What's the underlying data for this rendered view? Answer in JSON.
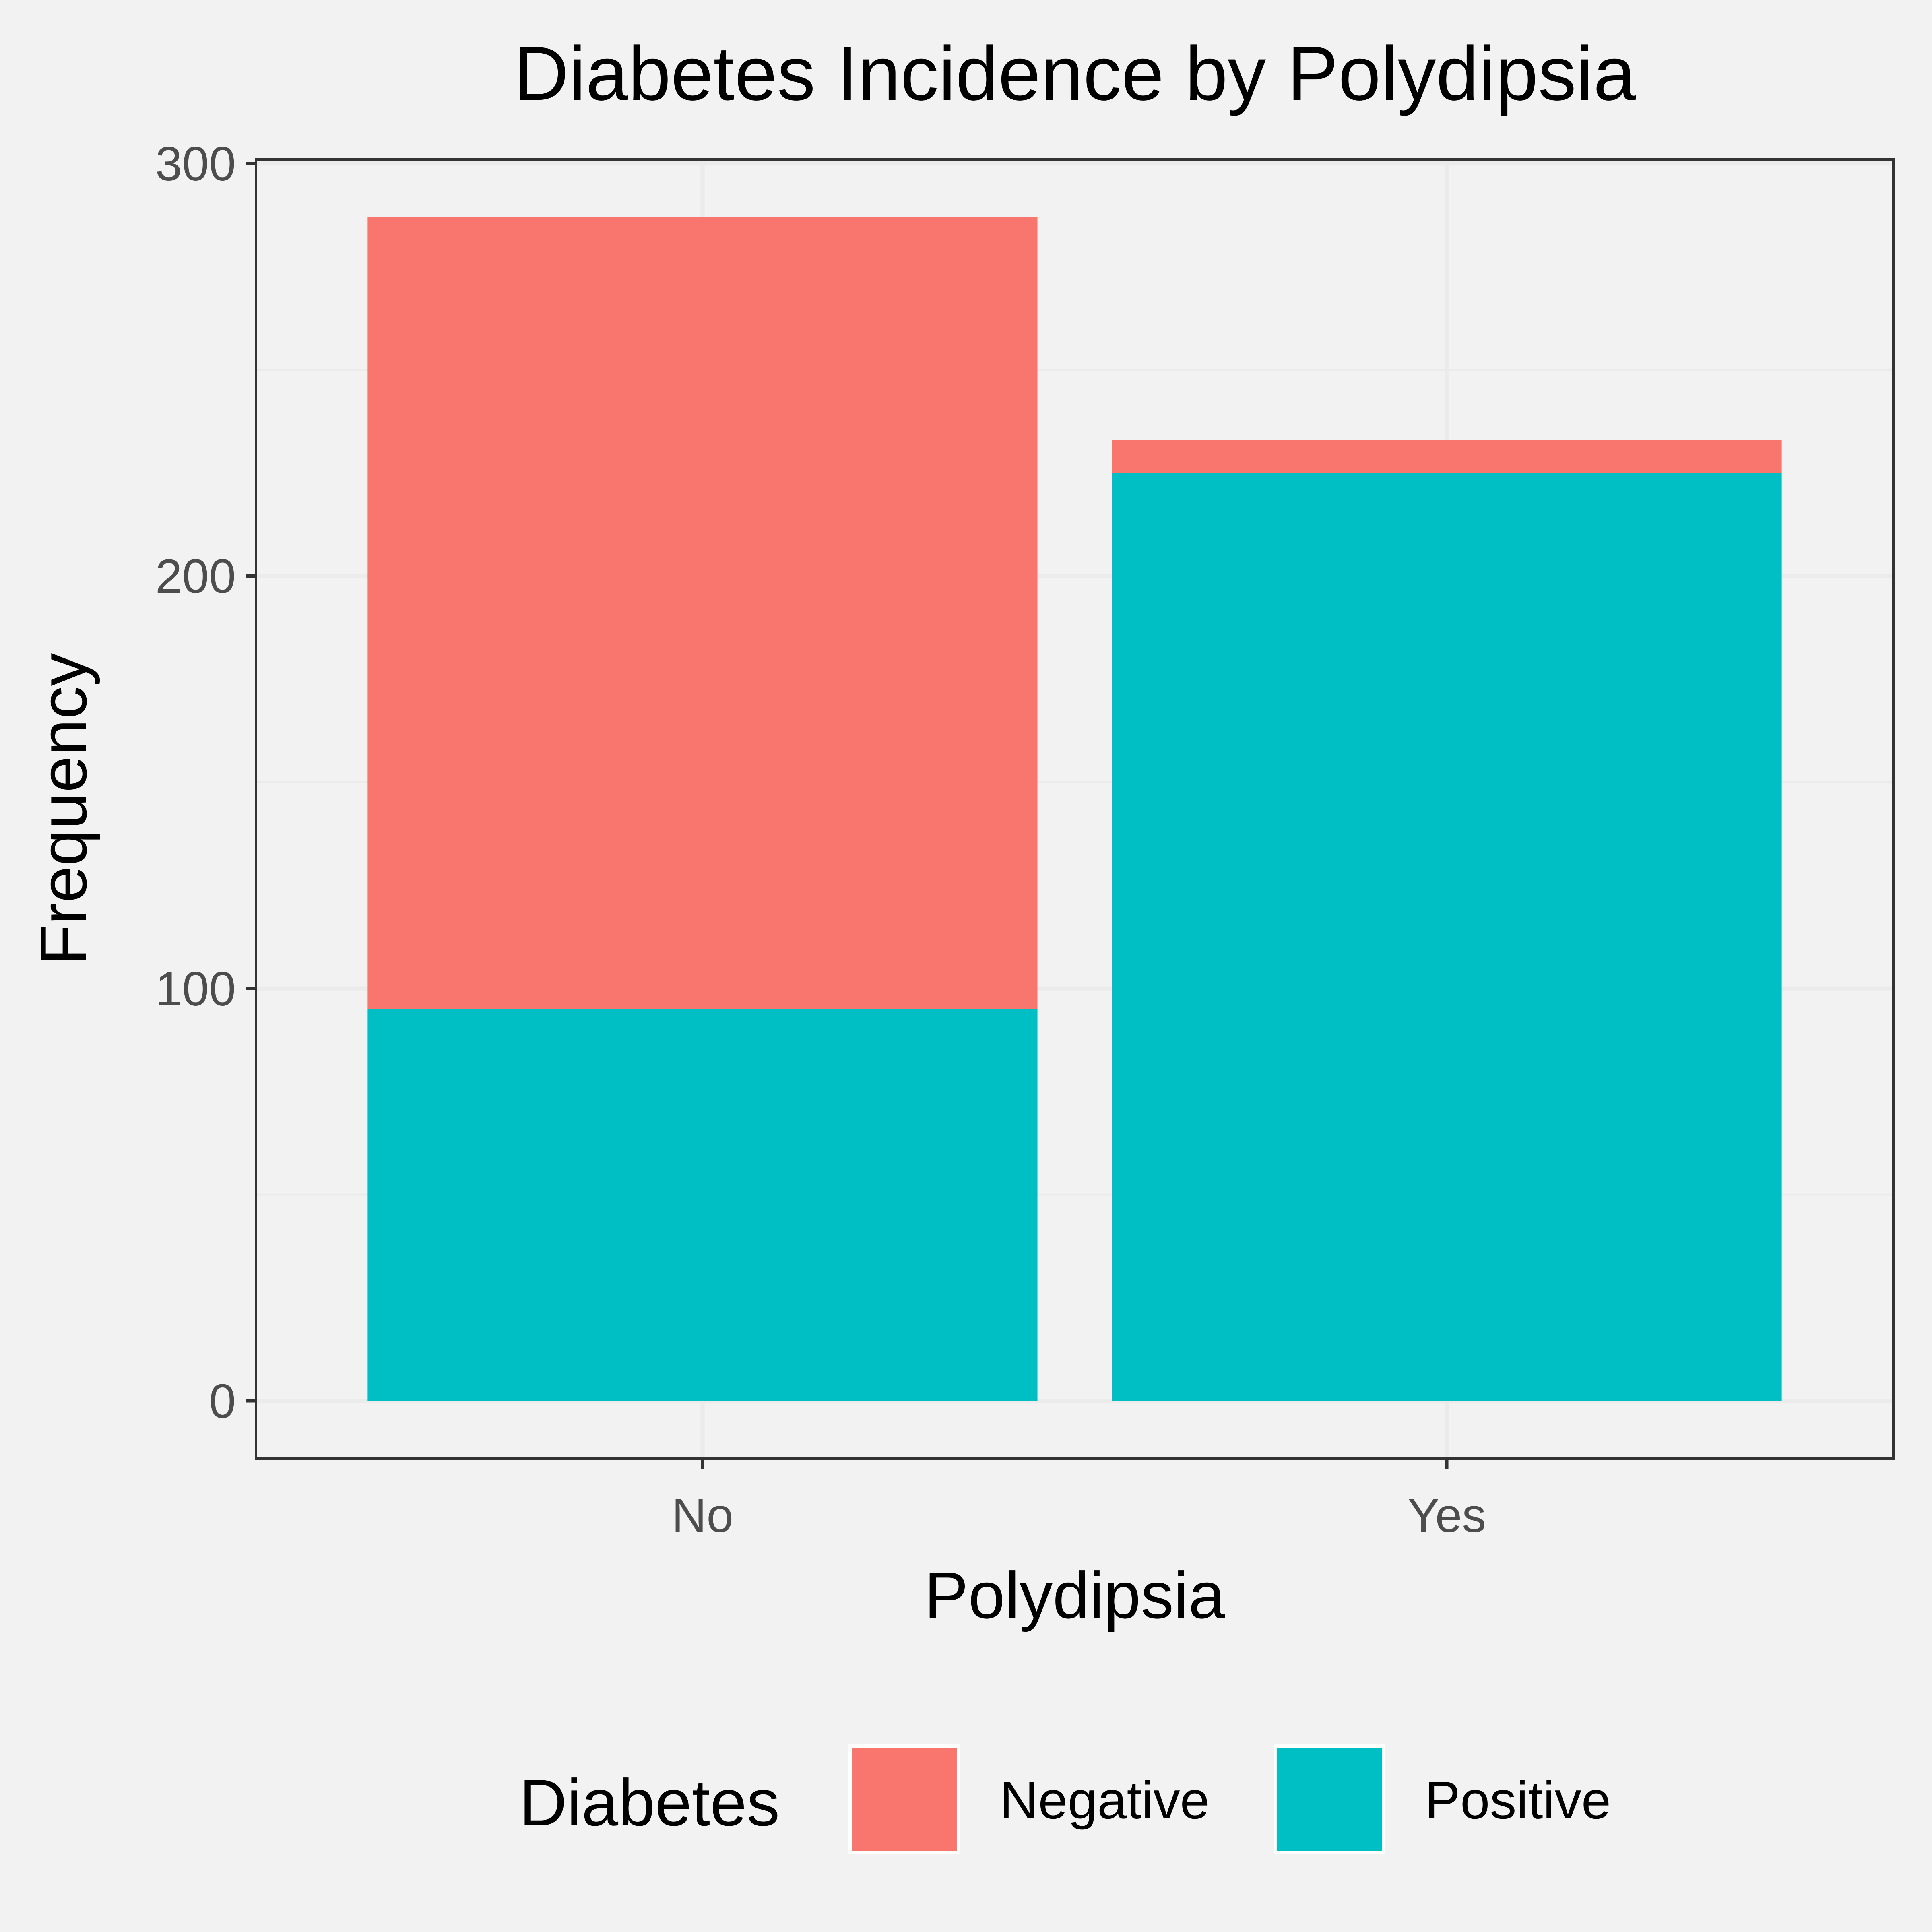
{
  "chart_data": {
    "type": "bar",
    "stacked": true,
    "title": "Diabetes Incidence by Polydipsia",
    "xlabel": "Polydipsia",
    "ylabel": "Frequency",
    "categories": [
      "No",
      "Yes"
    ],
    "series": [
      {
        "name": "Negative",
        "color": "#f8766d",
        "values": [
          192,
          8
        ]
      },
      {
        "name": "Positive",
        "color": "#00bfc4",
        "values": [
          95,
          225
        ]
      }
    ],
    "ylim": [
      -14,
      301
    ],
    "yticks": [
      0,
      100,
      200,
      300
    ],
    "grid": true,
    "legend": {
      "title": "Diabetes",
      "position": "bottom"
    },
    "background": "#f2f2f2",
    "grid_color": "#ebebeb",
    "axis_color": "#333333",
    "tick_label_color": "#4d4d4d"
  }
}
